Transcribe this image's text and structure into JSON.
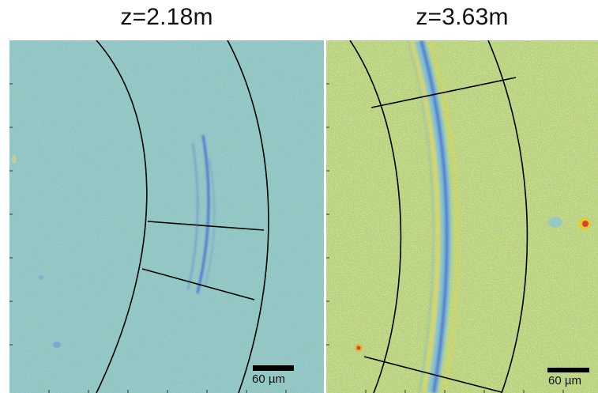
{
  "panels": [
    {
      "title": "z=2.18m",
      "scale_bar": {
        "label": "60 µm"
      },
      "colors": {
        "background": "#8ec7c2",
        "noise_light": "#c3d692",
        "noise_dark": "#6b9fc7",
        "stripe": "#3558d8"
      }
    },
    {
      "title": "z=3.63m",
      "scale_bar": {
        "label": "60 µm"
      },
      "colors": {
        "background": "#b3d07f",
        "noise_light": "#e4da45",
        "noise_dark": "#79b7c2",
        "stripe": "#3e62d4",
        "hotspot": "#d8432a"
      }
    }
  ]
}
